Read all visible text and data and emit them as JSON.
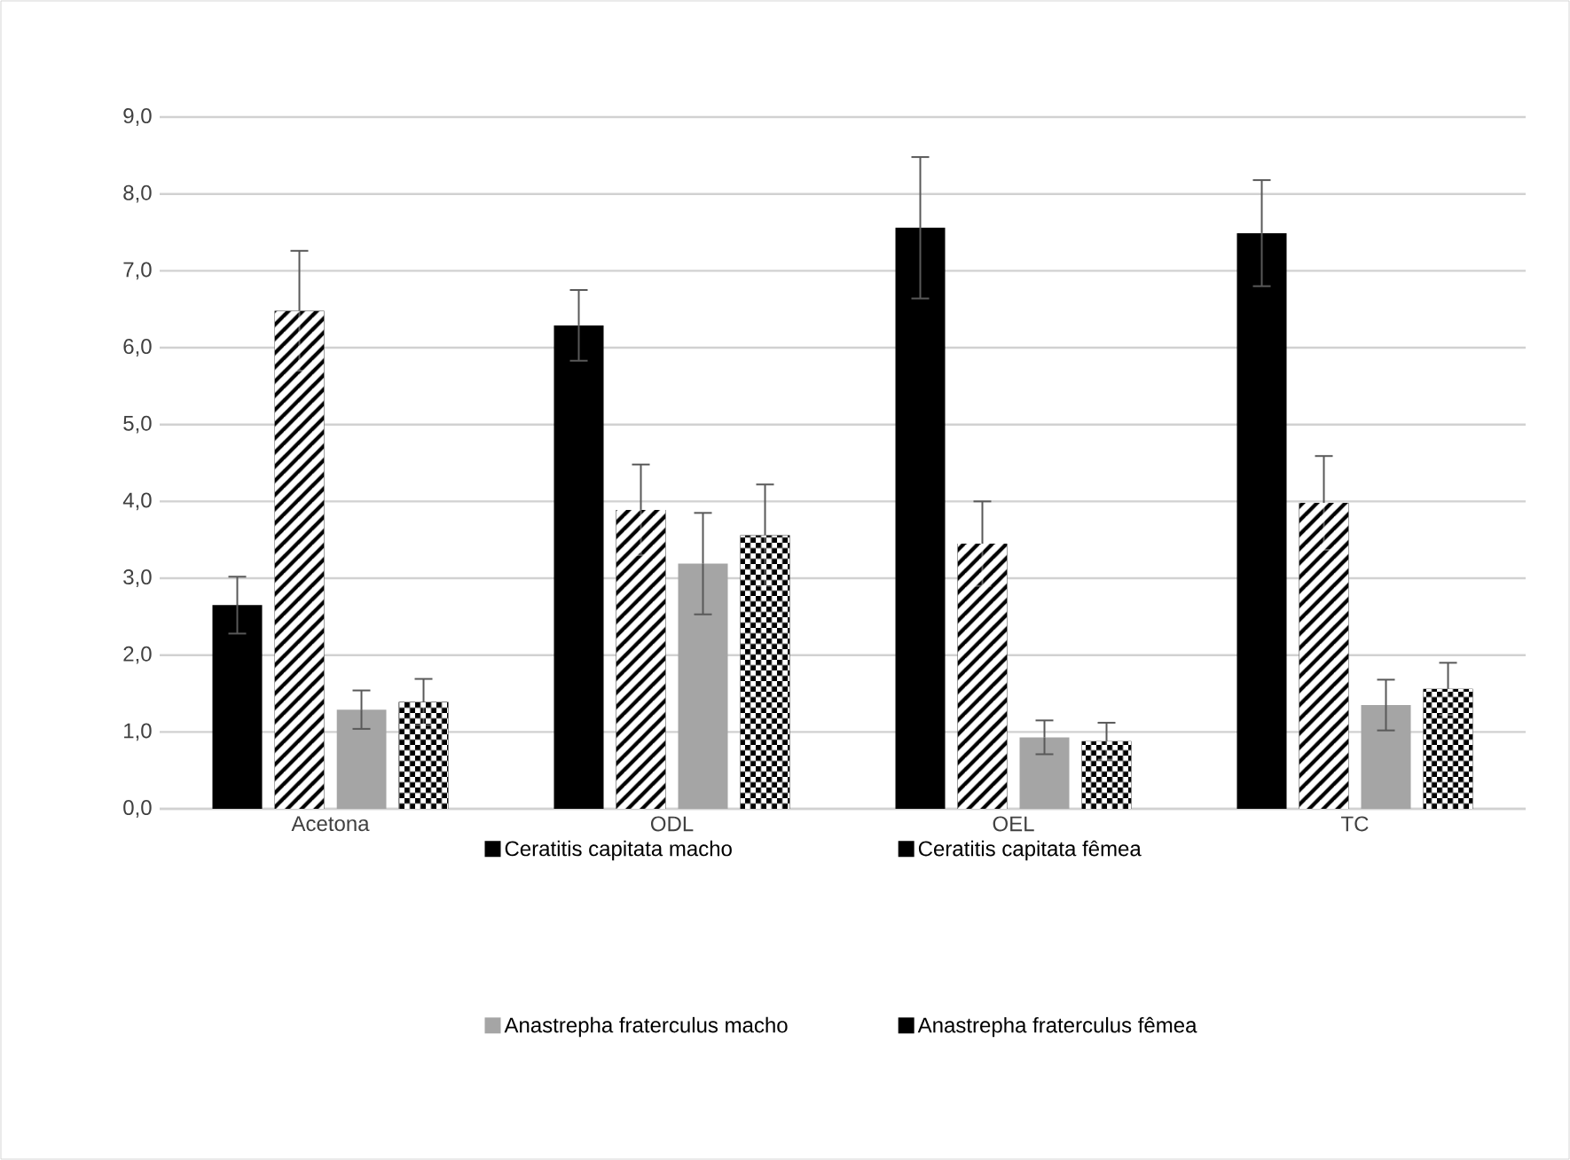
{
  "chart_data": {
    "type": "bar",
    "categories": [
      "Acetona",
      "ODL",
      "OEL",
      "TC"
    ],
    "ylim": [
      0,
      9
    ],
    "yticks": [
      {
        "value": 0,
        "label": "0,0"
      },
      {
        "value": 1,
        "label": "1,0"
      },
      {
        "value": 2,
        "label": "2,0"
      },
      {
        "value": 3,
        "label": "3,0"
      },
      {
        "value": 4,
        "label": "4,0"
      },
      {
        "value": 5,
        "label": "5,0"
      },
      {
        "value": 6,
        "label": "6,0"
      },
      {
        "value": 7,
        "label": "7,0"
      },
      {
        "value": 8,
        "label": "8,0"
      },
      {
        "value": 9,
        "label": "9,0"
      }
    ],
    "grid": "y",
    "legend": "bottom",
    "series": [
      {
        "name": "Ceratitis capitata macho",
        "color": "#000000",
        "values": [
          2.65,
          6.29,
          7.56,
          7.49
        ],
        "errors": [
          0.37,
          0.46,
          0.92,
          0.69
        ]
      },
      {
        "name": "Ceratitis capitata fêmea",
        "color": "#000000",
        "values": [
          6.48,
          3.89,
          3.45,
          3.98
        ],
        "errors": [
          0.78,
          0.59,
          0.55,
          0.61
        ]
      },
      {
        "name": "Anastrepha fraterculus macho",
        "color": "#a5a5a5",
        "values": [
          1.29,
          3.19,
          0.93,
          1.35
        ],
        "errors": [
          0.25,
          0.66,
          0.22,
          0.33
        ]
      },
      {
        "name": "Anastrepha fraterculus fêmea",
        "color": "#000000",
        "values": [
          1.39,
          3.56,
          0.88,
          1.56
        ],
        "errors": [
          0.3,
          0.66,
          0.24,
          0.34
        ]
      }
    ]
  }
}
